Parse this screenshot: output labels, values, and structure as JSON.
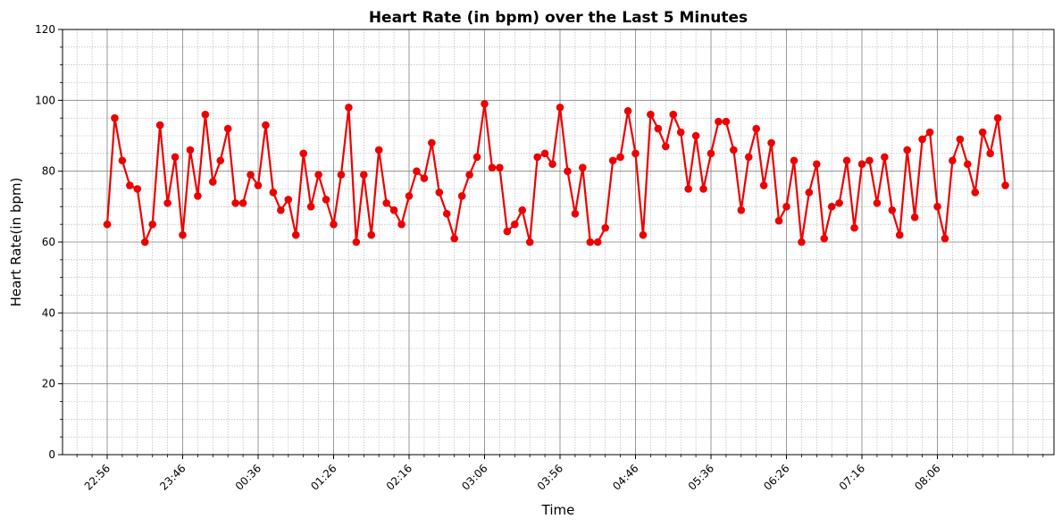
{
  "chart_data": {
    "type": "line",
    "title": "Heart Rate (in bpm) over the Last 5 Minutes",
    "xlabel": "Time",
    "ylabel": "Heart Rate(in bpm)",
    "ylim": [
      0,
      120
    ],
    "y_ticks": [
      0,
      20,
      40,
      60,
      80,
      100,
      120
    ],
    "x_ticks": [
      "22:56",
      "23:46",
      "00:36",
      "01:26",
      "02:16",
      "03:06",
      "03:56",
      "04:46",
      "05:36",
      "06:26",
      "07:16",
      "08:06"
    ],
    "grid": true,
    "line_color": "#ee0000",
    "series": [
      {
        "values": [
          65,
          95,
          83,
          76,
          75,
          60,
          65,
          93,
          71,
          84,
          62,
          86,
          73,
          96,
          77,
          83,
          92,
          71,
          71,
          79,
          76,
          93,
          74,
          69,
          72,
          62,
          85,
          70,
          79,
          72,
          65,
          79,
          98,
          60,
          79,
          62,
          86,
          71,
          69,
          65,
          73,
          80,
          78,
          88,
          74,
          68,
          61,
          73,
          79,
          84,
          99,
          81,
          81,
          63,
          65,
          69,
          60,
          84,
          85,
          82,
          98,
          80,
          68,
          81,
          60,
          60,
          64,
          83,
          84,
          97,
          85,
          62,
          96,
          92,
          87,
          96,
          91,
          75,
          90,
          75,
          85,
          94,
          94,
          86,
          69,
          84,
          92,
          76,
          88,
          66,
          70,
          83,
          60,
          74,
          82,
          61,
          70,
          71,
          83,
          64,
          82,
          83,
          71,
          84,
          69,
          62,
          86,
          67,
          89,
          91,
          70,
          61,
          83,
          89,
          82,
          74,
          91,
          85,
          95,
          76
        ]
      }
    ]
  }
}
